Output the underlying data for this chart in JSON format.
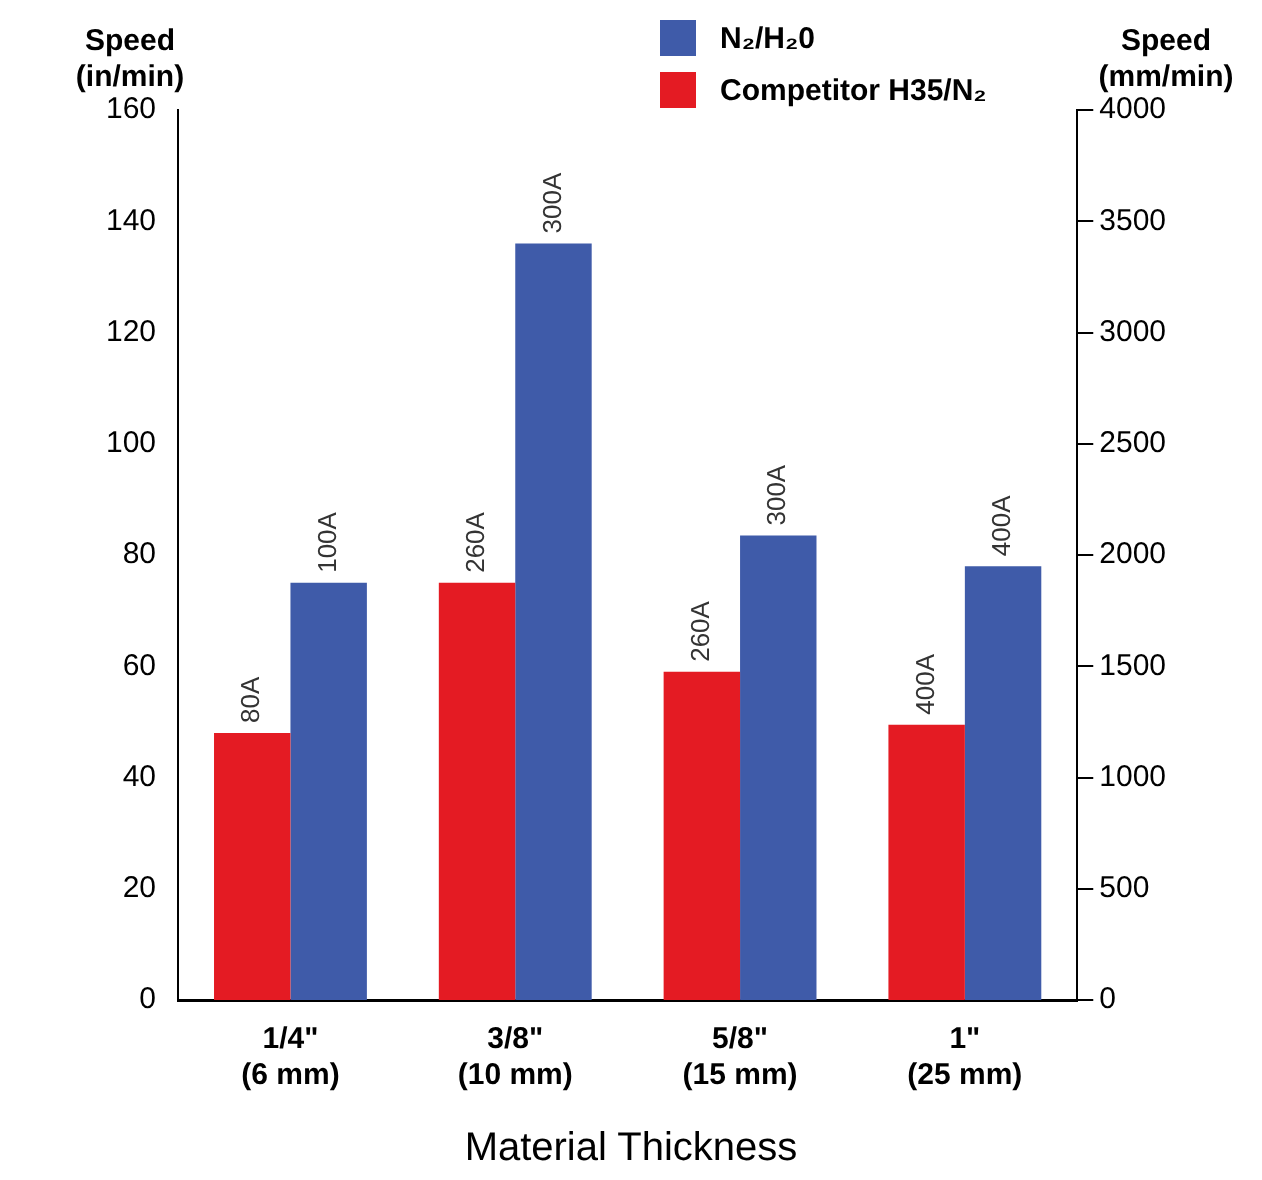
{
  "chart_data": {
    "type": "bar",
    "xlabel": "Material Thickness",
    "ylabel": "Speed (in/min)",
    "y2label": "Speed (mm/min)",
    "categories": [
      "1/4\"\n(6 mm)",
      "3/8\"\n(10 mm)",
      "5/8\"\n(15 mm)",
      "1\"\n(25 mm)"
    ],
    "series": [
      {
        "name": "Competitor H35/N₂",
        "color": "#e41b23",
        "values": [
          48,
          75,
          59,
          49.5
        ]
      },
      {
        "name": "N₂/H₂0",
        "color": "#3f5ba9",
        "values": [
          75,
          136,
          83.5,
          78
        ]
      }
    ],
    "annotations": [
      {
        "text": "80A",
        "x": "1/4\"\n(6 mm)",
        "y": 48
      },
      {
        "text": "260A",
        "x": "3/8\"\n(10 mm)",
        "y": 75
      },
      {
        "text": "260A",
        "x": "5/8\"\n(15 mm)",
        "y": 59
      },
      {
        "text": "400A",
        "x": "1\"\n(25 mm)",
        "y": 49.5
      },
      {
        "text": "100A",
        "x": "1/4\"\n(6 mm)",
        "y": 75
      },
      {
        "text": "300A",
        "x": "3/8\"\n(10 mm)",
        "y": 136
      },
      {
        "text": "300A",
        "x": "5/8\"\n(15 mm)",
        "y": 83.5
      },
      {
        "text": "400A",
        "x": "1\"\n(25 mm)",
        "y": 78
      }
    ],
    "ylim": [
      0,
      160
    ],
    "yticks": [
      0,
      20,
      40,
      60,
      80,
      100,
      120,
      140,
      160
    ],
    "y2lim": [
      0,
      4000
    ],
    "y2ticks": [
      0,
      500,
      1000,
      1500,
      2000,
      2500,
      3000,
      3500,
      4000
    ],
    "grid": false,
    "legend": "top right"
  }
}
